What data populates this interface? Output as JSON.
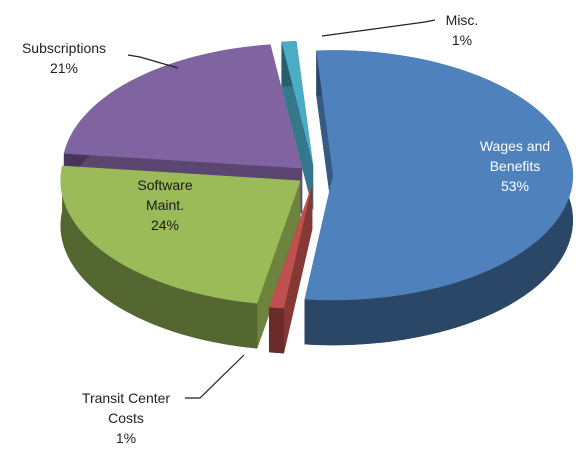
{
  "chart_data": {
    "type": "pie",
    "categories": [
      "Wages and Benefits",
      "Transit Center Costs",
      "Software Maint.",
      "Subscriptions",
      "Misc."
    ],
    "values": [
      53,
      1,
      24,
      21,
      1
    ],
    "value_labels": [
      "53%",
      "1%",
      "24%",
      "21%",
      "1%"
    ],
    "colors": [
      "#4f81bd",
      "#c0504d",
      "#9bbb59",
      "#8064a2",
      "#4bacc6"
    ]
  }
}
